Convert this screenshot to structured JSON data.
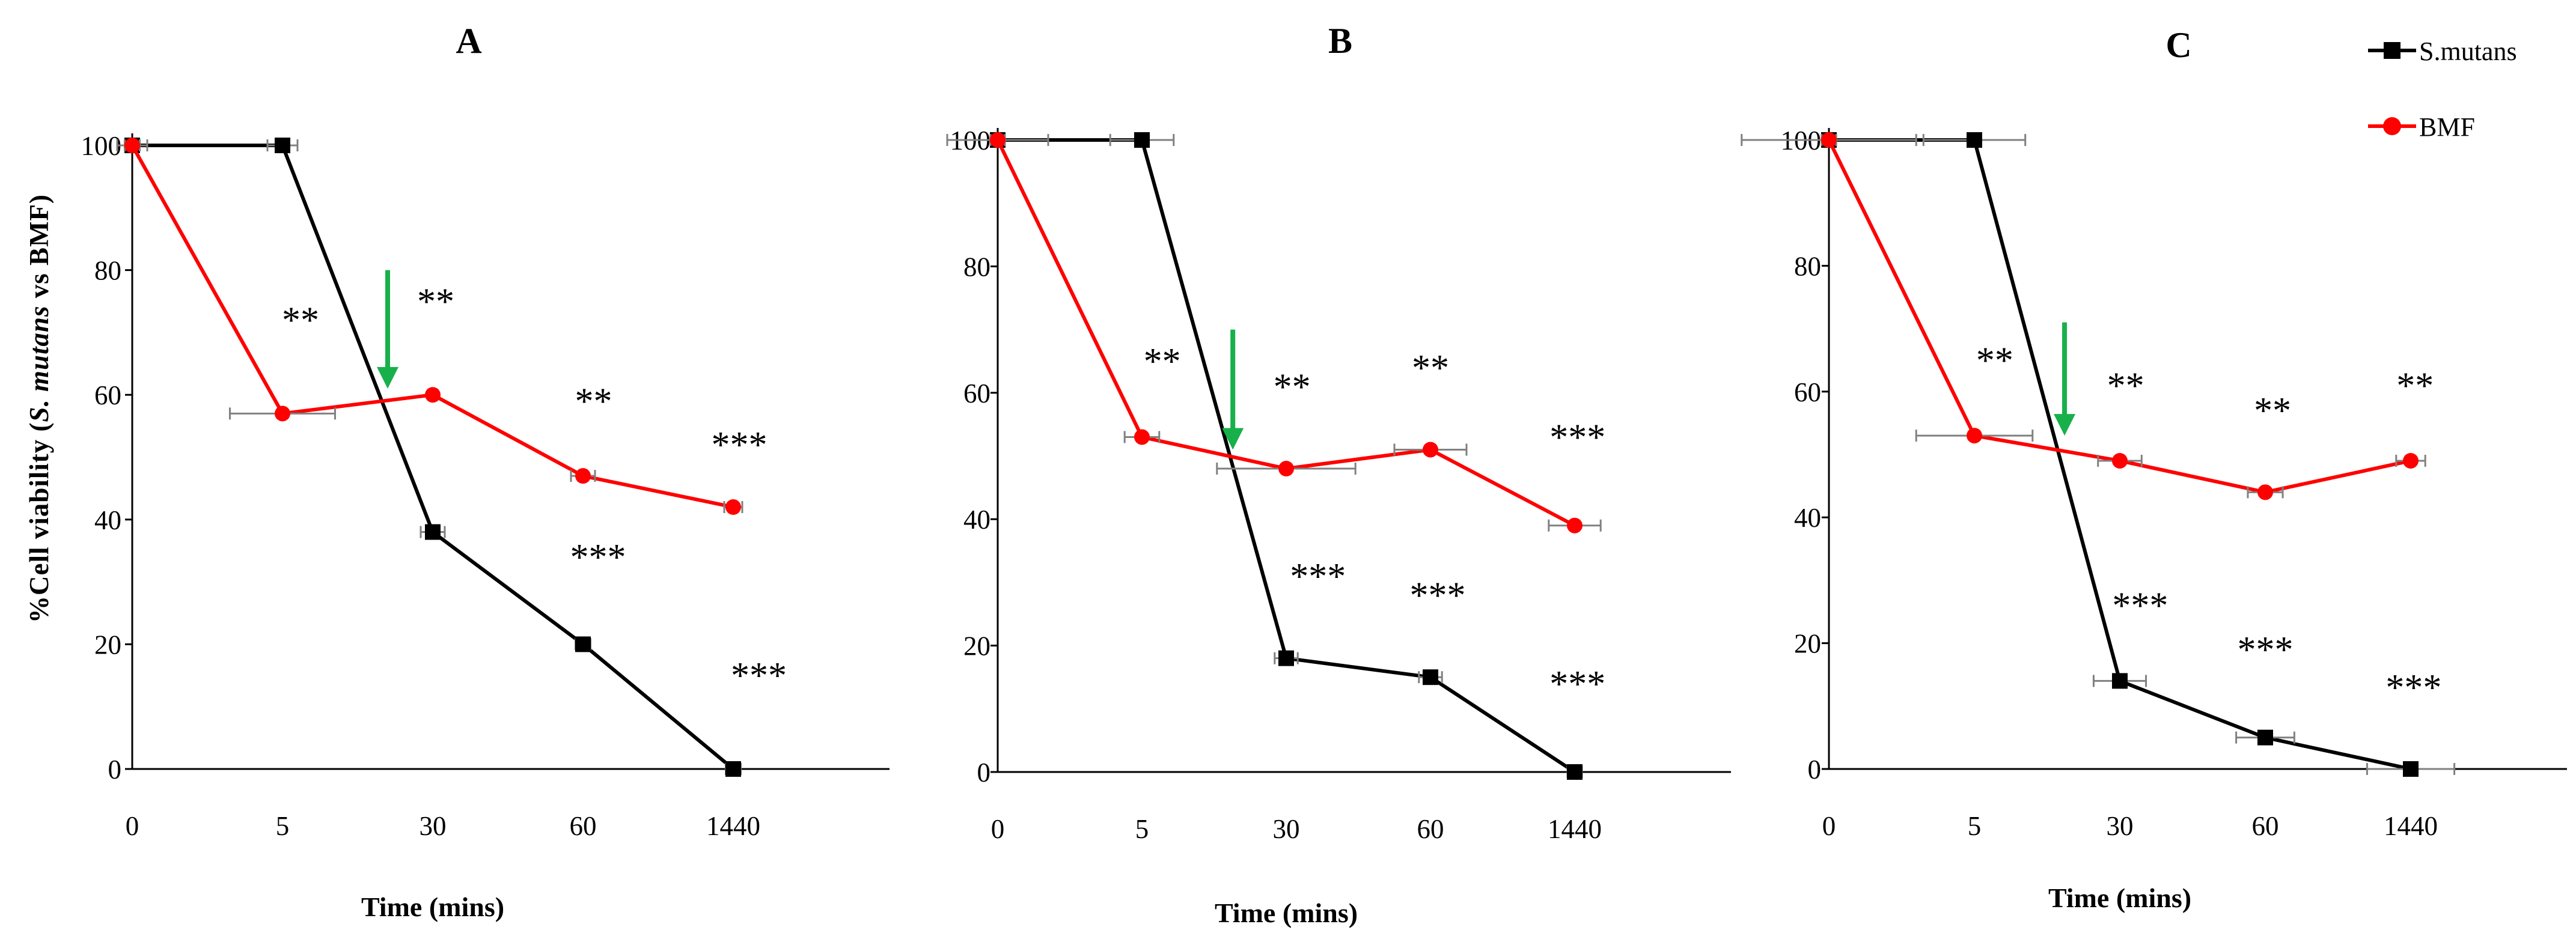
{
  "figure": {
    "ylabel_prefix": "%Cell viability (",
    "ylabel_italic": "S. mutans",
    "ylabel_suffix": " vs BMF)"
  },
  "legend": [
    {
      "name": "S.mutans",
      "color": "#000000",
      "marker": "square"
    },
    {
      "name": "BMF",
      "color": "#ff0000",
      "marker": "circle"
    }
  ],
  "chart_data": [
    {
      "type": "line",
      "panel": "A",
      "title": "A",
      "xlabel": "Time (mins)",
      "ylabel": "%Cell viability (S. mutans vs BMF)",
      "categories": [
        "0",
        "5",
        "30",
        "60",
        "1440"
      ],
      "ylim": [
        0,
        100
      ],
      "yticks": [
        0,
        20,
        40,
        60,
        80,
        100
      ],
      "series": [
        {
          "name": "S.mutans",
          "color": "#000000",
          "values": [
            100,
            100,
            38,
            20,
            0
          ],
          "xerr": [
            0.1,
            0.1,
            0.08,
            0.05,
            0.05
          ]
        },
        {
          "name": "BMF",
          "color": "#ff0000",
          "values": [
            100,
            57,
            60,
            47,
            42
          ],
          "xerr": [
            0.05,
            0.35,
            0.03,
            0.08,
            0.06
          ]
        }
      ],
      "annotations": [
        {
          "text": "**",
          "x": 1.12,
          "y": 70
        },
        {
          "text": "**",
          "x": 2.02,
          "y": 73
        },
        {
          "text": "**",
          "x": 3.07,
          "y": 57
        },
        {
          "text": "***",
          "x": 4.04,
          "y": 50
        },
        {
          "text": "***",
          "x": 3.1,
          "y": 32
        },
        {
          "text": "***",
          "x": 4.17,
          "y": 13
        }
      ],
      "arrow": {
        "x": 1.7,
        "from_y": 80,
        "to_y": 61,
        "color": "#18b04a"
      }
    },
    {
      "type": "line",
      "panel": "B",
      "title": "B",
      "xlabel": "Time (mins)",
      "ylabel": "",
      "categories": [
        "0",
        "5",
        "30",
        "60",
        "1440"
      ],
      "ylim": [
        0,
        100
      ],
      "yticks": [
        0,
        20,
        40,
        60,
        80,
        100
      ],
      "series": [
        {
          "name": "S.mutans",
          "color": "#000000",
          "values": [
            100,
            100,
            18,
            15,
            0
          ],
          "xerr": [
            0.35,
            0.22,
            0.08,
            0.08,
            0.05
          ]
        },
        {
          "name": "BMF",
          "color": "#ff0000",
          "values": [
            100,
            53,
            48,
            51,
            39
          ],
          "xerr": [
            0.05,
            0.12,
            0.48,
            0.25,
            0.18
          ]
        }
      ],
      "annotations": [
        {
          "text": "**",
          "x": 1.14,
          "y": 63
        },
        {
          "text": "**",
          "x": 2.04,
          "y": 59
        },
        {
          "text": "**",
          "x": 3.0,
          "y": 62
        },
        {
          "text": "***",
          "x": 4.02,
          "y": 51
        },
        {
          "text": "***",
          "x": 2.22,
          "y": 29
        },
        {
          "text": "***",
          "x": 3.05,
          "y": 26
        },
        {
          "text": "***",
          "x": 4.02,
          "y": 12
        }
      ],
      "arrow": {
        "x": 1.63,
        "from_y": 70,
        "to_y": 51,
        "color": "#18b04a"
      }
    },
    {
      "type": "line",
      "panel": "C",
      "title": "C",
      "xlabel": "Time (mins)",
      "ylabel": "",
      "categories": [
        "0",
        "5",
        "30",
        "60",
        "1440"
      ],
      "ylim": [
        0,
        100
      ],
      "yticks": [
        0,
        20,
        40,
        60,
        80,
        100
      ],
      "series": [
        {
          "name": "S.mutans",
          "color": "#000000",
          "values": [
            100,
            100,
            14,
            5,
            0
          ],
          "xerr": [
            0.6,
            0.35,
            0.18,
            0.2,
            0.3
          ]
        },
        {
          "name": "BMF",
          "color": "#ff0000",
          "values": [
            100,
            53,
            49,
            44,
            49
          ],
          "xerr": [
            0.05,
            0.4,
            0.15,
            0.12,
            0.1
          ]
        }
      ],
      "annotations": [
        {
          "text": "**",
          "x": 1.14,
          "y": 63
        },
        {
          "text": "**",
          "x": 2.04,
          "y": 59
        },
        {
          "text": "**",
          "x": 3.05,
          "y": 55
        },
        {
          "text": "**",
          "x": 4.03,
          "y": 59
        },
        {
          "text": "***",
          "x": 2.14,
          "y": 24
        },
        {
          "text": "***",
          "x": 3.0,
          "y": 17
        },
        {
          "text": "***",
          "x": 4.02,
          "y": 11
        }
      ],
      "arrow": {
        "x": 1.62,
        "from_y": 71,
        "to_y": 53,
        "color": "#18b04a"
      }
    }
  ]
}
